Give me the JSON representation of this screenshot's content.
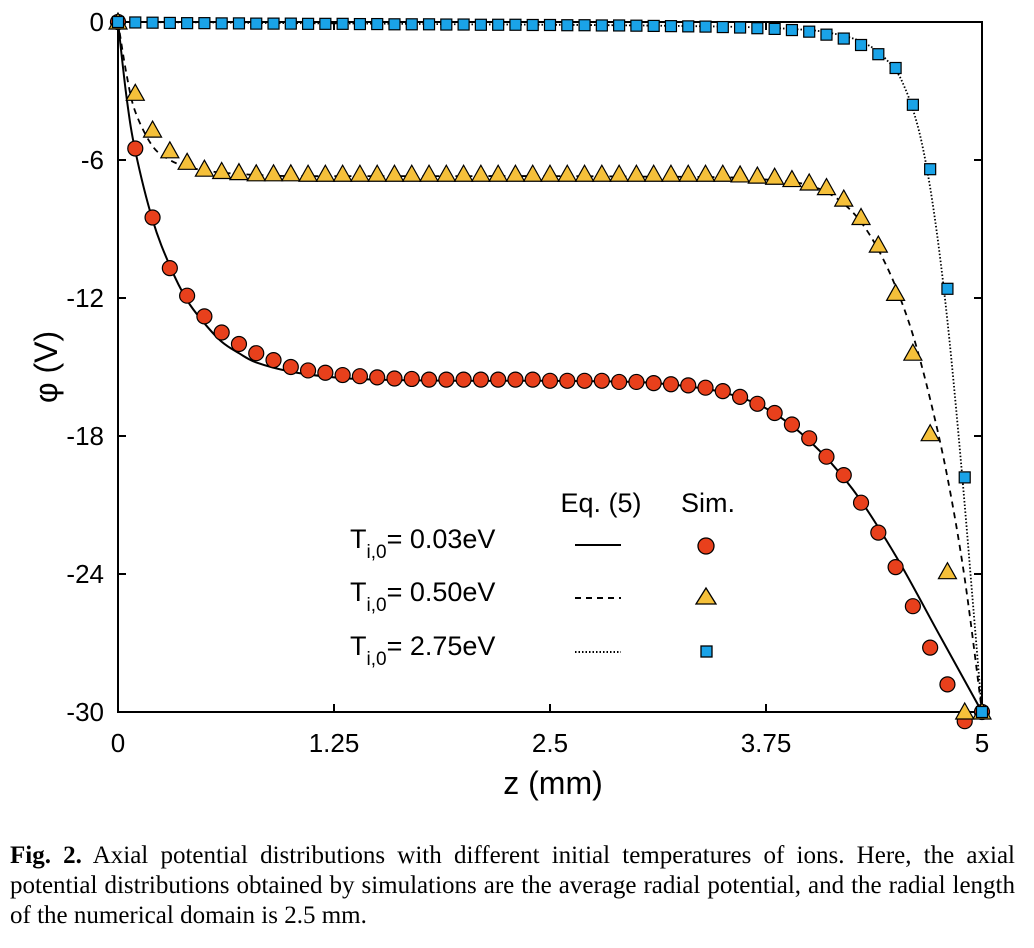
{
  "chart_data": {
    "type": "line",
    "xlabel": "z (mm)",
    "ylabel": "φ (V)",
    "xlim": [
      0,
      5
    ],
    "ylim": [
      -30,
      0
    ],
    "x_ticks": [
      "0",
      "1.25",
      "2.5",
      "3.75",
      "5"
    ],
    "x_tick_values": [
      0,
      1.25,
      2.5,
      3.75,
      5
    ],
    "y_ticks": [
      "0",
      "-6",
      "-12",
      "-18",
      "-24",
      "-30"
    ],
    "y_tick_values": [
      0,
      -6,
      -12,
      -18,
      -24,
      -30
    ],
    "grid": false,
    "legend": {
      "placement": "lower-center",
      "header_model": "Eq. (5)",
      "header_sim": "Sim.",
      "entries": [
        {
          "label_main": "T",
          "label_sub": "i,0",
          "label_value": "= 0.03eV"
        },
        {
          "label_main": "T",
          "label_sub": "i,0",
          "label_value": "= 0.50eV"
        },
        {
          "label_main": "T",
          "label_sub": "i,0",
          "label_value": "= 2.75eV"
        }
      ]
    },
    "series": [
      {
        "name": "T i,0 = 0.03eV",
        "line_style": "solid",
        "marker": "circle",
        "marker_color": "#e8401c",
        "model": {
          "x": [
            0,
            0.05,
            0.1,
            0.2,
            0.3,
            0.4,
            0.5,
            0.6,
            0.7,
            0.8,
            1.0,
            1.25,
            1.5,
            2.0,
            2.5,
            3.0,
            3.25,
            3.5,
            3.75,
            4.0,
            4.25,
            4.5,
            4.75,
            5.0
          ],
          "y": [
            0,
            -3.3,
            -5.6,
            -8.6,
            -10.6,
            -12.1,
            -13.1,
            -13.9,
            -14.4,
            -14.8,
            -15.2,
            -15.45,
            -15.55,
            -15.6,
            -15.6,
            -15.65,
            -15.8,
            -16.1,
            -16.8,
            -18.2,
            -20.3,
            -23.2,
            -26.6,
            -30
          ]
        },
        "sim": {
          "x": [
            0,
            0.1,
            0.2,
            0.3,
            0.4,
            0.5,
            0.6,
            0.7,
            0.8,
            0.9,
            1.0,
            1.1,
            1.2,
            1.3,
            1.4,
            1.5,
            1.6,
            1.7,
            1.8,
            1.9,
            2.0,
            2.1,
            2.2,
            2.3,
            2.4,
            2.5,
            2.6,
            2.7,
            2.8,
            2.9,
            3.0,
            3.1,
            3.2,
            3.3,
            3.4,
            3.5,
            3.6,
            3.7,
            3.8,
            3.9,
            4.0,
            4.1,
            4.2,
            4.3,
            4.4,
            4.5,
            4.6,
            4.7,
            4.8,
            4.9,
            5.0
          ],
          "y": [
            0,
            -5.5,
            -8.5,
            -10.7,
            -11.9,
            -12.8,
            -13.5,
            -14.0,
            -14.4,
            -14.7,
            -15.0,
            -15.15,
            -15.25,
            -15.35,
            -15.4,
            -15.45,
            -15.5,
            -15.52,
            -15.55,
            -15.55,
            -15.55,
            -15.55,
            -15.55,
            -15.55,
            -15.55,
            -15.6,
            -15.6,
            -15.6,
            -15.6,
            -15.65,
            -15.65,
            -15.7,
            -15.75,
            -15.8,
            -15.9,
            -16.05,
            -16.3,
            -16.6,
            -17.0,
            -17.5,
            -18.1,
            -18.9,
            -19.7,
            -20.9,
            -22.2,
            -23.7,
            -25.4,
            -27.2,
            -28.8,
            -30.4,
            -30
          ]
        }
      },
      {
        "name": "T i,0 = 0.50eV",
        "line_style": "dashed",
        "marker": "triangle",
        "marker_color": "#f5c03a",
        "model": {
          "x": [
            0,
            0.05,
            0.1,
            0.2,
            0.3,
            0.4,
            0.5,
            0.6,
            0.7,
            0.8,
            1.0,
            1.5,
            2.0,
            2.5,
            3.0,
            3.5,
            3.75,
            3.9,
            4.0,
            4.1,
            4.2,
            4.3,
            4.4,
            4.5,
            4.6,
            4.7,
            4.8,
            4.9,
            5.0
          ],
          "y": [
            0,
            -2.3,
            -3.9,
            -5.4,
            -6.0,
            -6.3,
            -6.45,
            -6.55,
            -6.6,
            -6.65,
            -6.7,
            -6.7,
            -6.7,
            -6.7,
            -6.72,
            -6.75,
            -6.85,
            -6.95,
            -7.1,
            -7.4,
            -7.9,
            -8.7,
            -9.9,
            -11.5,
            -13.6,
            -16.4,
            -19.8,
            -24.2,
            -30
          ]
        },
        "sim": {
          "x": [
            0,
            0.1,
            0.2,
            0.3,
            0.4,
            0.5,
            0.6,
            0.7,
            0.8,
            0.9,
            1.0,
            1.1,
            1.2,
            1.3,
            1.4,
            1.5,
            1.6,
            1.7,
            1.8,
            1.9,
            2.0,
            2.1,
            2.2,
            2.3,
            2.4,
            2.5,
            2.6,
            2.7,
            2.8,
            2.9,
            3.0,
            3.1,
            3.2,
            3.3,
            3.4,
            3.5,
            3.6,
            3.7,
            3.8,
            3.9,
            4.0,
            4.1,
            4.2,
            4.3,
            4.4,
            4.5,
            4.6,
            4.7,
            4.8,
            4.9,
            5.0
          ],
          "y": [
            0,
            -3.1,
            -4.7,
            -5.6,
            -6.1,
            -6.4,
            -6.5,
            -6.55,
            -6.6,
            -6.6,
            -6.6,
            -6.62,
            -6.62,
            -6.62,
            -6.62,
            -6.62,
            -6.62,
            -6.62,
            -6.62,
            -6.62,
            -6.62,
            -6.62,
            -6.62,
            -6.62,
            -6.62,
            -6.62,
            -6.62,
            -6.62,
            -6.62,
            -6.62,
            -6.62,
            -6.62,
            -6.62,
            -6.62,
            -6.62,
            -6.62,
            -6.65,
            -6.7,
            -6.75,
            -6.85,
            -7.0,
            -7.2,
            -7.7,
            -8.5,
            -9.7,
            -11.8,
            -14.4,
            -17.9,
            -23.9,
            -30.0,
            -30
          ]
        }
      },
      {
        "name": "T i,0 = 2.75eV",
        "line_style": "dotted",
        "marker": "square",
        "marker_color": "#1aa3e8",
        "model": {
          "x": [
            0,
            0.5,
            1.0,
            1.5,
            2.0,
            2.5,
            3.0,
            3.5,
            3.75,
            4.0,
            4.1,
            4.2,
            4.3,
            4.4,
            4.5,
            4.55,
            4.6,
            4.65,
            4.7,
            4.75,
            4.8,
            4.85,
            4.9,
            4.95,
            5.0
          ],
          "y": [
            0,
            -0.02,
            -0.05,
            -0.07,
            -0.1,
            -0.12,
            -0.15,
            -0.2,
            -0.25,
            -0.35,
            -0.45,
            -0.6,
            -0.85,
            -1.3,
            -2.1,
            -2.8,
            -3.8,
            -5.2,
            -7.2,
            -9.8,
            -13.0,
            -16.8,
            -21.0,
            -25.5,
            -30
          ]
        },
        "sim": {
          "x": [
            0,
            0.1,
            0.2,
            0.3,
            0.4,
            0.5,
            0.6,
            0.7,
            0.8,
            0.9,
            1.0,
            1.1,
            1.2,
            1.3,
            1.4,
            1.5,
            1.6,
            1.7,
            1.8,
            1.9,
            2.0,
            2.1,
            2.2,
            2.3,
            2.4,
            2.5,
            2.6,
            2.7,
            2.8,
            2.9,
            3.0,
            3.1,
            3.2,
            3.3,
            3.4,
            3.5,
            3.6,
            3.7,
            3.8,
            3.9,
            4.0,
            4.1,
            4.2,
            4.3,
            4.4,
            4.5,
            4.6,
            4.7,
            4.8,
            4.9,
            5.0
          ],
          "y": [
            0,
            -0.02,
            -0.03,
            -0.04,
            -0.05,
            -0.05,
            -0.06,
            -0.06,
            -0.07,
            -0.07,
            -0.07,
            -0.08,
            -0.08,
            -0.08,
            -0.09,
            -0.09,
            -0.1,
            -0.1,
            -0.1,
            -0.11,
            -0.11,
            -0.12,
            -0.12,
            -0.12,
            -0.13,
            -0.13,
            -0.14,
            -0.14,
            -0.15,
            -0.15,
            -0.16,
            -0.17,
            -0.18,
            -0.19,
            -0.2,
            -0.22,
            -0.24,
            -0.27,
            -0.3,
            -0.35,
            -0.42,
            -0.55,
            -0.72,
            -1.0,
            -1.4,
            -2.0,
            -3.6,
            -6.4,
            -11.6,
            -19.8,
            -30
          ]
        }
      }
    ]
  },
  "caption": {
    "label": "Fig. 2.",
    "text": " Axial potential distributions with different initial temperatures of ions. Here, the axial potential distributions obtained by simulations are the average radial potential, and the radial length of the numerical domain is 2.5 mm."
  }
}
